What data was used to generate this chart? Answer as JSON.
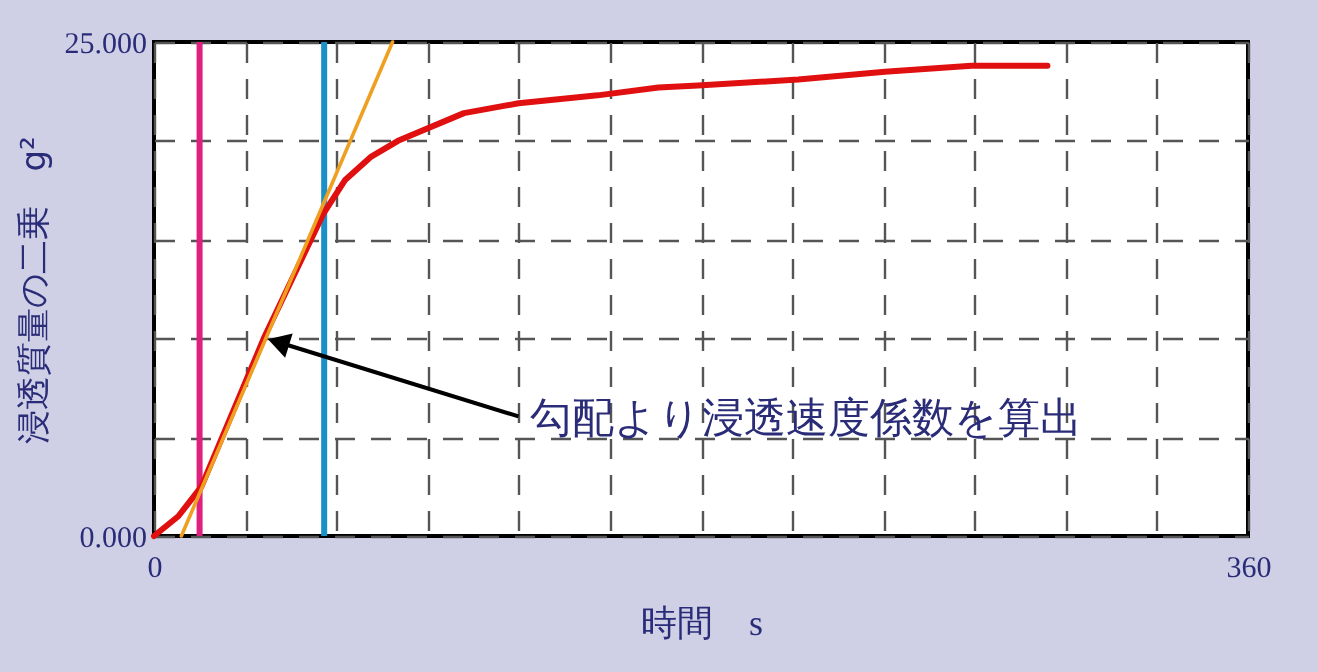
{
  "chart_data": {
    "type": "line",
    "xlabel": "時間　s",
    "ylabel": "浸透質量の二乗　g²",
    "xlim": [
      0,
      360
    ],
    "ylim": [
      0,
      25
    ],
    "xticks": [
      0,
      {
        "value": 30,
        "label": null
      },
      {
        "value": 60,
        "label": null
      },
      {
        "value": 90,
        "label": null
      },
      {
        "value": 120,
        "label": null
      },
      {
        "value": 150,
        "label": null
      },
      {
        "value": 180,
        "label": null
      },
      {
        "value": 210,
        "label": null
      },
      {
        "value": 240,
        "label": null
      },
      {
        "value": 270,
        "label": null
      },
      {
        "value": 300,
        "label": null
      },
      {
        "value": 330,
        "label": null
      },
      360
    ],
    "yticks": [
      {
        "value": 0,
        "label": "0.000"
      },
      {
        "value": 5,
        "label": null
      },
      {
        "value": 10,
        "label": null
      },
      {
        "value": 15,
        "label": null
      },
      {
        "value": 20,
        "label": null
      },
      {
        "value": 25,
        "label": "25.000"
      }
    ],
    "grid": true,
    "marker": "none",
    "line_style": "solid",
    "series": [
      {
        "color": "#e01010",
        "x": [
          0,
          8,
          15.6,
          36.4,
          55.7,
          62.8,
          71.5,
          80.3,
          102,
          120,
          146,
          166,
          179,
          212,
          240.5,
          269,
          294
        ],
        "values": [
          0,
          1,
          2.5,
          10.1,
          16.3,
          18,
          19.2,
          20,
          21.4,
          21.9,
          22.3,
          22.7,
          22.8,
          23.1,
          23.5,
          23.8,
          23.8
        ]
      },
      {
        "color": "#f0a020",
        "x": [
          9,
          78.5
        ],
        "values": [
          0,
          25
        ]
      }
    ],
    "ref_lines": [
      {
        "axis": "x",
        "value": 15,
        "color": "#e0207f"
      },
      {
        "axis": "x",
        "value": 56,
        "color": "#1a8fc8"
      }
    ],
    "annotations": [
      {
        "text": "勾配より浸透速度係数を算出",
        "x": 37,
        "y": 10
      }
    ]
  }
}
